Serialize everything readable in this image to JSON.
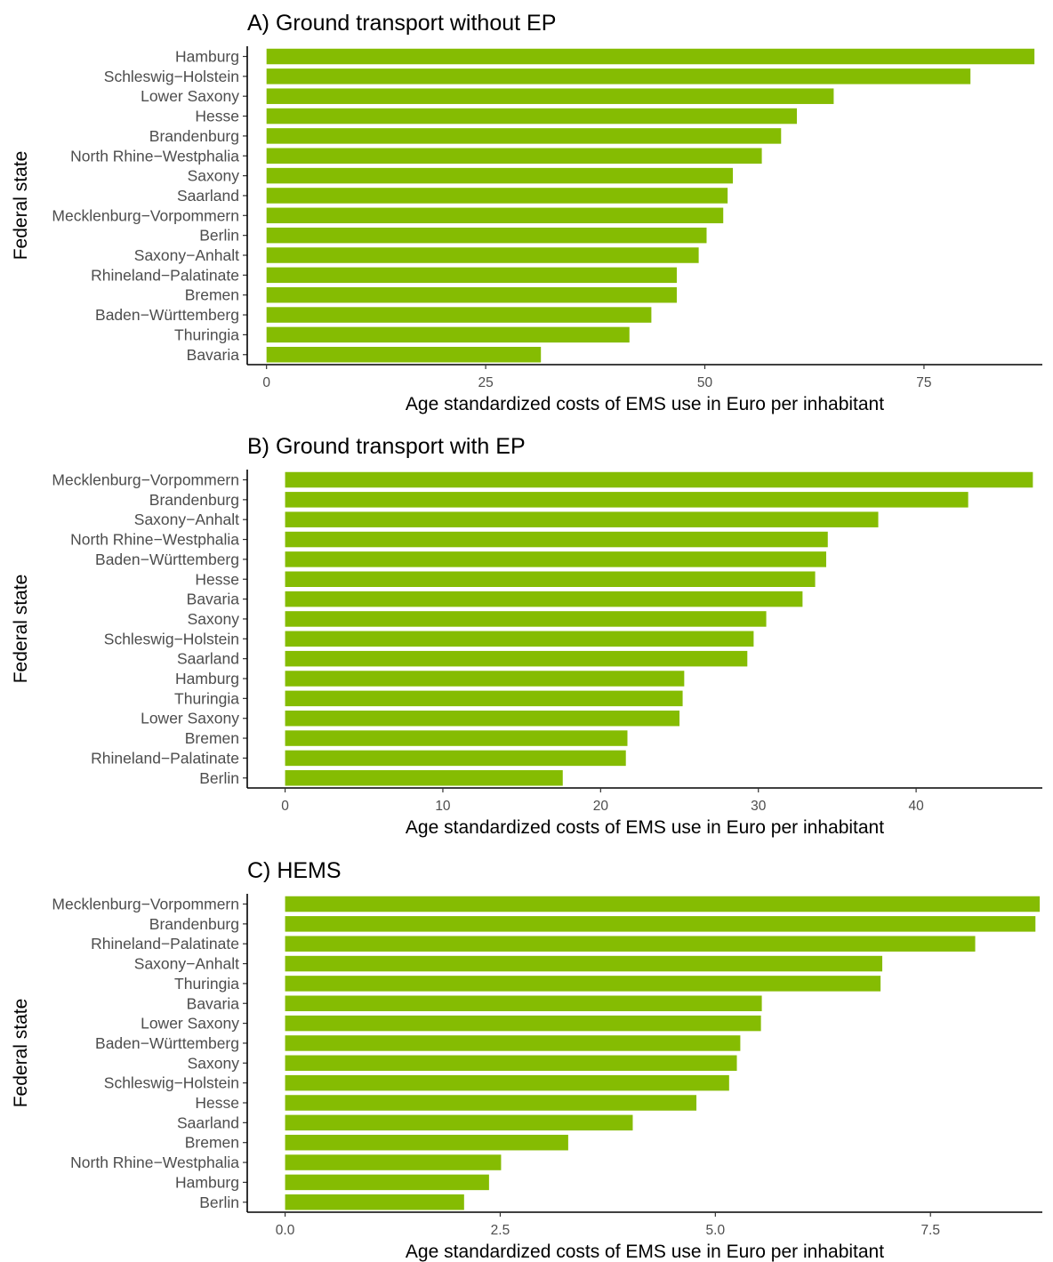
{
  "chart_data": [
    {
      "type": "bar",
      "orientation": "horizontal",
      "title": "A) Ground transport without EP",
      "xlabel": "Age standardized costs of EMS use in Euro per inhabitant",
      "ylabel": "Federal state",
      "xlim": [
        -2.2,
        88.5
      ],
      "xticks": [
        0,
        25,
        50,
        75
      ],
      "xtick_labels": [
        "0",
        "25",
        "50",
        "75"
      ],
      "bar_color": "#85bc02",
      "grid": false,
      "categories": [
        "Hamburg",
        "Schleswig−Holstein",
        "Lower Saxony",
        "Hesse",
        "Brandenburg",
        "North Rhine−Westphalia",
        "Saxony",
        "Saarland",
        "Mecklenburg−Vorpommern",
        "Berlin",
        "Saxony−Anhalt",
        "Rhineland−Palatinate",
        "Bremen",
        "Baden−Württemberg",
        "Thuringia",
        "Bavaria"
      ],
      "values": [
        87.6,
        80.3,
        64.7,
        60.5,
        58.7,
        56.5,
        53.2,
        52.6,
        52.1,
        50.2,
        49.3,
        46.8,
        46.8,
        43.9,
        41.4,
        31.3
      ]
    },
    {
      "type": "bar",
      "orientation": "horizontal",
      "title": "B) Ground transport with EP",
      "xlabel": "Age standardized costs of EMS use in Euro per inhabitant",
      "ylabel": "Federal state",
      "xlim": [
        -2.4,
        48.0
      ],
      "xticks": [
        0,
        10,
        20,
        30,
        40
      ],
      "xtick_labels": [
        "0",
        "10",
        "20",
        "30",
        "40"
      ],
      "bar_color": "#85bc02",
      "grid": false,
      "categories": [
        "Mecklenburg−Vorpommern",
        "Brandenburg",
        "Saxony−Anhalt",
        "North Rhine−Westphalia",
        "Baden−Württemberg",
        "Hesse",
        "Bavaria",
        "Saxony",
        "Schleswig−Holstein",
        "Saarland",
        "Hamburg",
        "Thuringia",
        "Lower Saxony",
        "Bremen",
        "Rhineland−Palatinate",
        "Berlin"
      ],
      "values": [
        47.4,
        43.3,
        37.6,
        34.4,
        34.3,
        33.6,
        32.8,
        30.5,
        29.7,
        29.3,
        25.3,
        25.2,
        25.0,
        21.7,
        21.6,
        17.6
      ]
    },
    {
      "type": "bar",
      "orientation": "horizontal",
      "title": "C) HEMS",
      "xlabel": "Age standardized costs of EMS use in Euro per inhabitant",
      "ylabel": "Federal state",
      "xlim": [
        -0.44,
        8.8
      ],
      "xticks": [
        0.0,
        2.5,
        5.0,
        7.5
      ],
      "xtick_labels": [
        "0.0",
        "2.5",
        "5.0",
        "7.5"
      ],
      "bar_color": "#85bc02",
      "grid": false,
      "categories": [
        "Mecklenburg−Vorpommern",
        "Brandenburg",
        "Rhineland−Palatinate",
        "Saxony−Anhalt",
        "Thuringia",
        "Bavaria",
        "Lower Saxony",
        "Baden−Württemberg",
        "Saxony",
        "Schleswig−Holstein",
        "Hesse",
        "Saarland",
        "Bremen",
        "North Rhine−Westphalia",
        "Hamburg",
        "Berlin"
      ],
      "values": [
        8.77,
        8.72,
        8.02,
        6.94,
        6.92,
        5.54,
        5.53,
        5.29,
        5.25,
        5.16,
        4.78,
        4.04,
        3.29,
        2.51,
        2.37,
        2.08
      ]
    }
  ]
}
